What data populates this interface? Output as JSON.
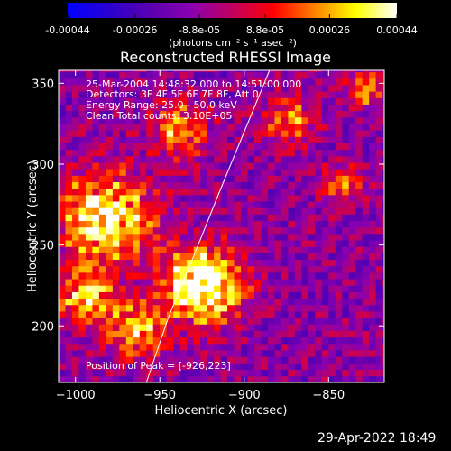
{
  "chart_data": {
    "type": "heatmap",
    "title": "Reconstructed RHESSI Image",
    "xlabel": "Heliocentric X (arcsec)",
    "ylabel": "Heliocentric Y (arcsec)",
    "xlim": [
      -1010,
      -817
    ],
    "ylim": [
      165,
      358
    ],
    "xticks": [
      -1000,
      -950,
      -900,
      -850
    ],
    "yticks": [
      200,
      250,
      300,
      350
    ],
    "colorbar": {
      "min": -0.00044,
      "max": 0.00044,
      "ticks": [
        "-0.00044",
        "-0.00026",
        "-8.8e-05",
        "8.8e-05",
        "0.00026",
        "0.00044"
      ],
      "tick_values": [
        -0.00044,
        -0.00026,
        -8.8e-05,
        8.8e-05,
        0.00026,
        0.00044
      ],
      "unit_label": "(photons cm⁻² s⁻¹ asec⁻²)",
      "colors": [
        "#0000ff",
        "#2a00d0",
        "#5a00b0",
        "#8a00b0",
        "#c00060",
        "#ff0000",
        "#ff8000",
        "#ffff00",
        "#ffffff"
      ]
    },
    "annotations": {
      "time_range": "25-Mar-2004 14:48:32.000 to 14:51:00.000",
      "detectors": "Detectors: 3F 4F 5F 6F 7F 8F, Att 0",
      "energy": "Energy Range: 25.0 - 50.0 keV",
      "clean": "Clean    Total counts: 3.10E+05",
      "peak": "Position of Peak = [-926,223]"
    },
    "peak": [
      -926,
      223
    ],
    "limb": [
      [
        -885,
        358
      ],
      [
        -900,
        320
      ],
      [
        -915,
        282
      ],
      [
        -930,
        243
      ],
      [
        -945,
        205
      ],
      [
        -958,
        165
      ]
    ],
    "grid": false
  },
  "footer": {
    "timestamp": "29-Apr-2022 18:49"
  }
}
